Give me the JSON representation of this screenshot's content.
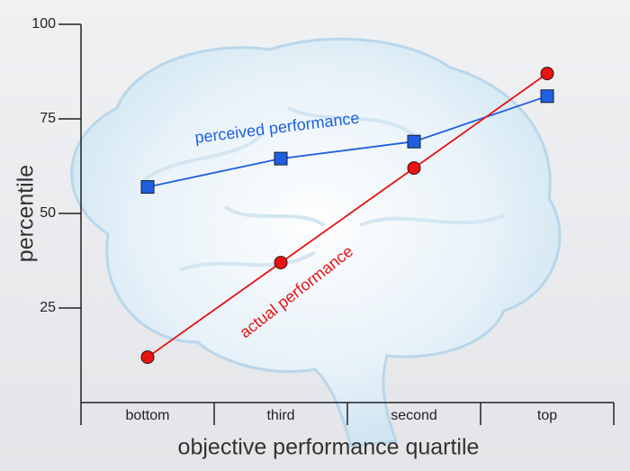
{
  "chart_data": {
    "type": "line",
    "xlabel": "objective performance quartile",
    "ylabel": "percentile",
    "categories": [
      "bottom",
      "third",
      "second",
      "top"
    ],
    "ylim": [
      0,
      100
    ],
    "yticks": [
      25,
      50,
      75,
      100
    ],
    "series": [
      {
        "name": "perceived performance",
        "color": "#1f5fe0",
        "marker": "square",
        "values": [
          57,
          64.5,
          69,
          81
        ]
      },
      {
        "name": "actual performance",
        "color": "#e81313",
        "marker": "circle",
        "values": [
          12,
          37,
          62,
          87
        ]
      }
    ]
  }
}
